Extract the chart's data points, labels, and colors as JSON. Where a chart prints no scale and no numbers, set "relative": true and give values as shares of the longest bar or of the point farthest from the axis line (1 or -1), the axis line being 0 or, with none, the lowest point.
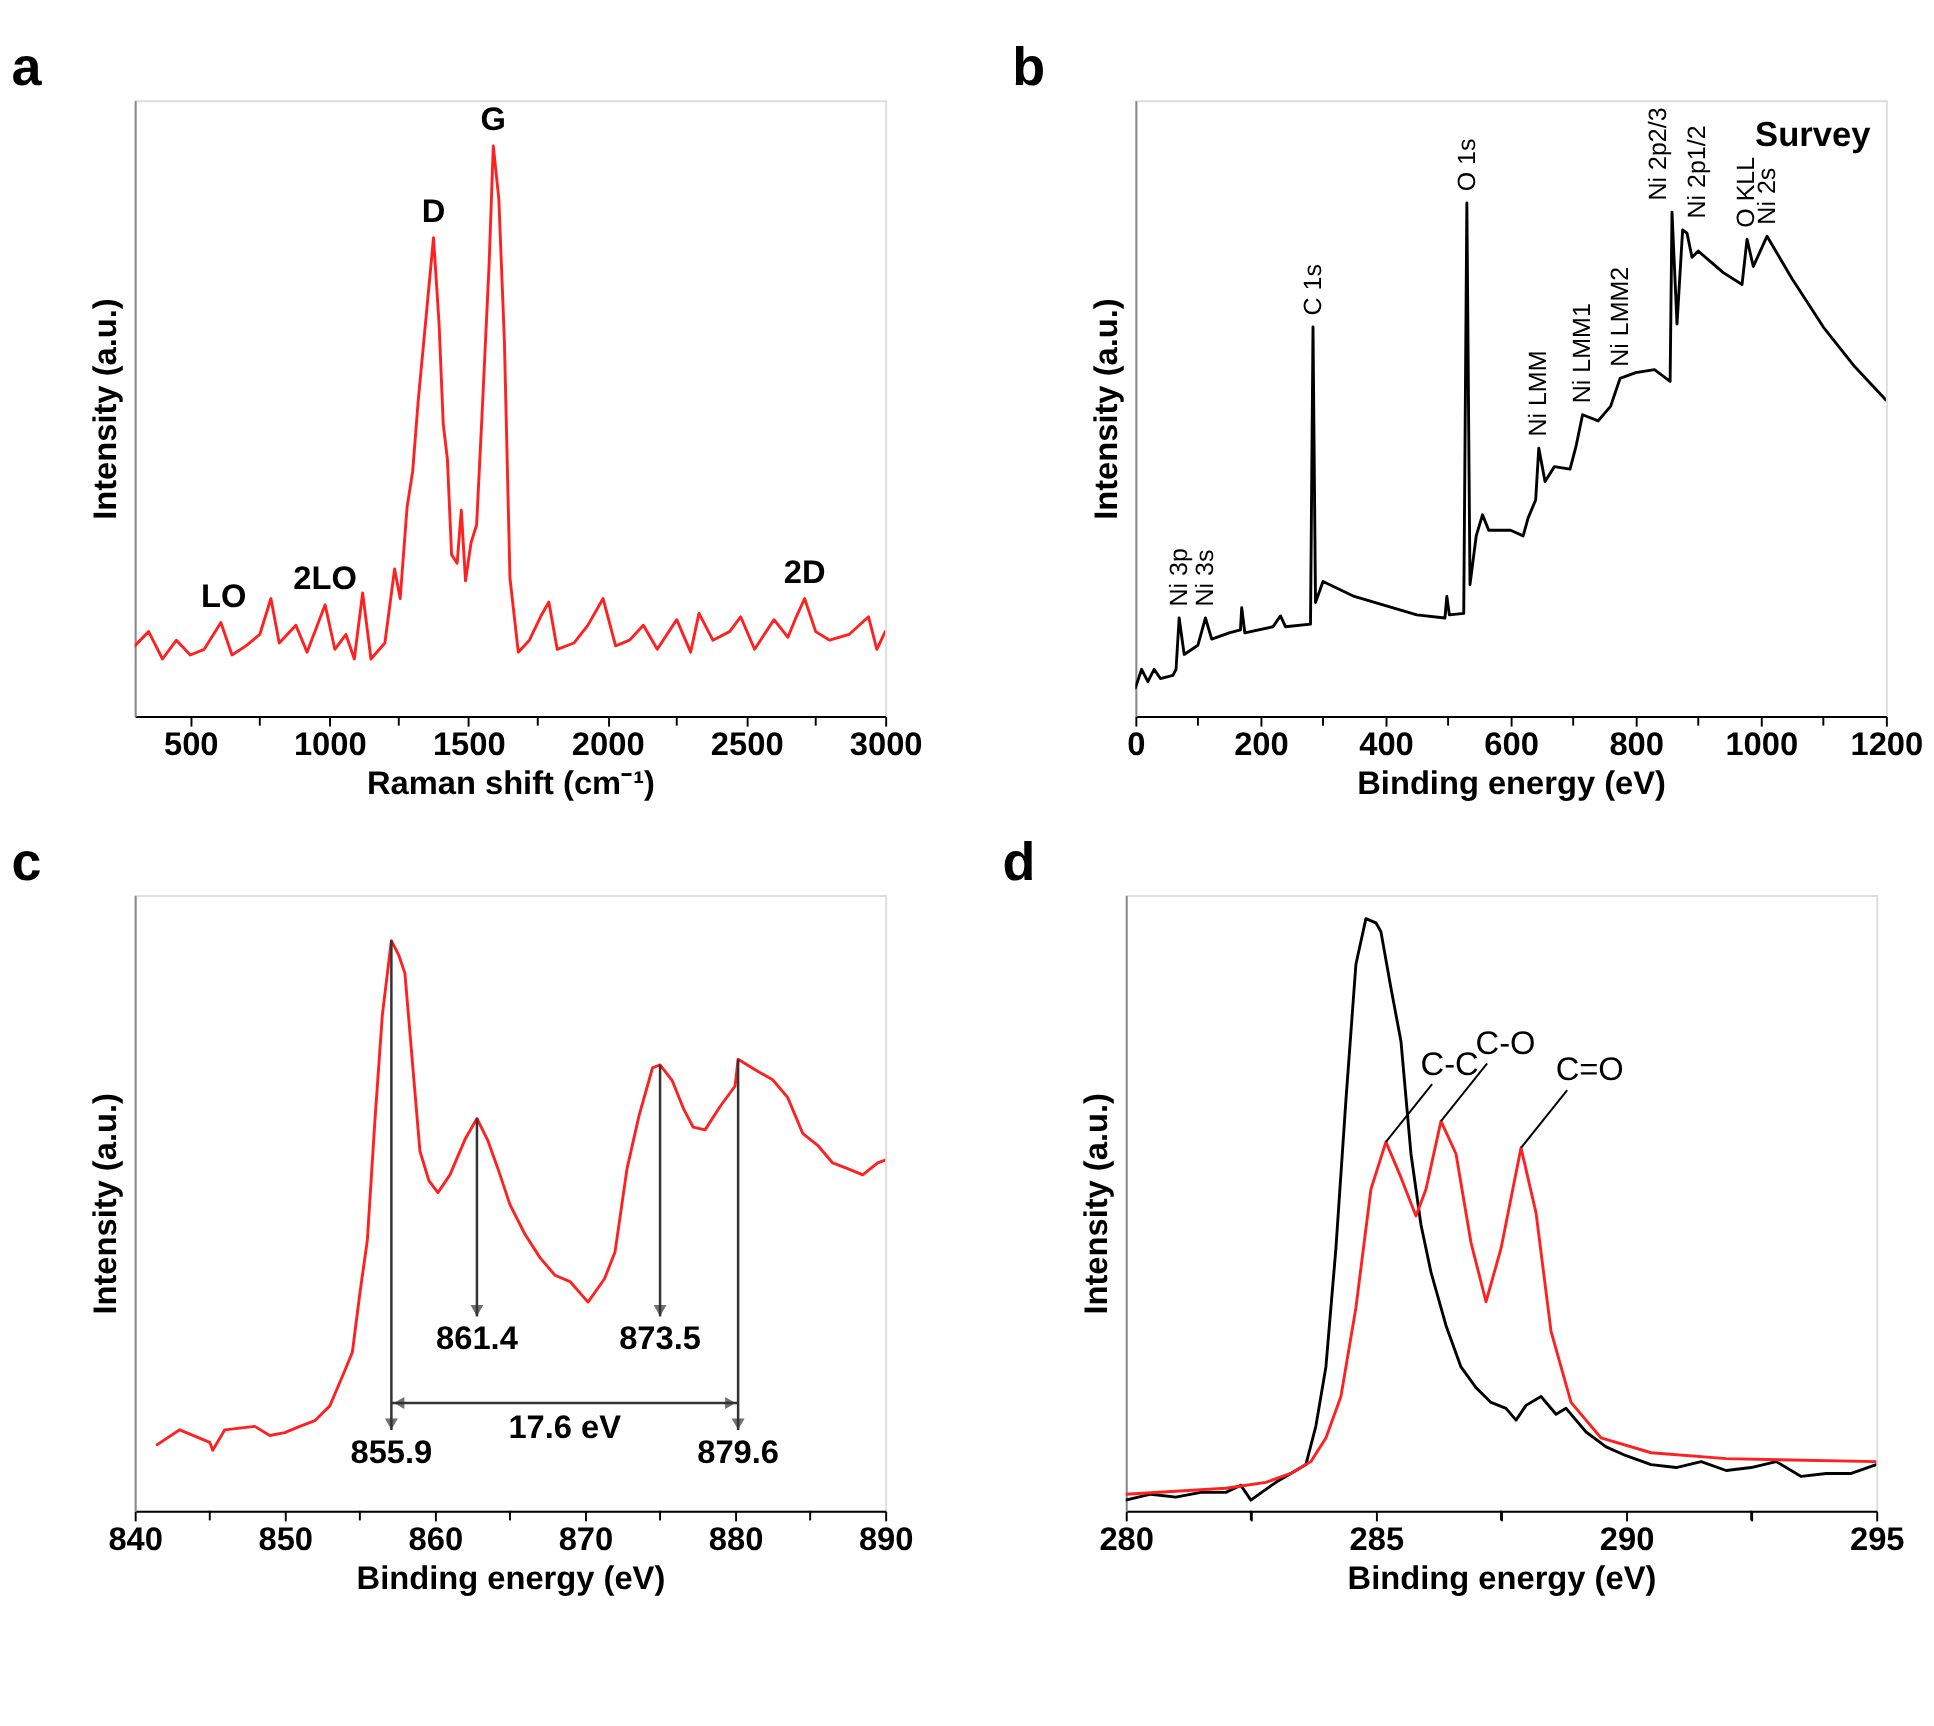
{
  "chart_data": [
    {
      "type": "line",
      "title": "a",
      "xlabel": "Raman shift (cm⁻¹)",
      "ylabel": "Intensity (a.u.)",
      "relative": true,
      "tick_labels": "x",
      "grid": false,
      "xlim": [
        300,
        3000
      ],
      "xticks": [
        500,
        {
          "value": 750,
          "label": null
        },
        1000,
        {
          "value": 1250,
          "label": null
        },
        1500,
        {
          "value": 1750,
          "label": null
        },
        2000,
        {
          "value": 2250,
          "label": null
        },
        2500,
        {
          "value": 2750,
          "label": null
        },
        3000
      ],
      "series": [
        {
          "color": "#ff2020",
          "x": [
            300,
            350,
            400,
            450,
            500,
            550,
            610,
            650,
            700,
            750,
            790,
            820,
            880,
            920,
            985,
            1020,
            1060,
            1090,
            1120,
            1150,
            1200,
            1235,
            1255,
            1280,
            1300,
            1320,
            1350,
            1375,
            1395,
            1410,
            1425,
            1440,
            1460,
            1475,
            1490,
            1510,
            1530,
            1550,
            1575,
            1590,
            1610,
            1630,
            1650,
            1680,
            1720,
            1760,
            1790,
            1820,
            1880,
            1930,
            1985,
            2030,
            2080,
            2130,
            2180,
            2250,
            2300,
            2330,
            2380,
            2440,
            2480,
            2530,
            2600,
            2650,
            2680,
            2710,
            2750,
            2800,
            2870,
            2940,
            2970,
            3000
          ],
          "values": [
            0.123,
            0.148,
            0.1,
            0.133,
            0.107,
            0.117,
            0.164,
            0.107,
            0.123,
            0.143,
            0.206,
            0.128,
            0.159,
            0.112,
            0.195,
            0.117,
            0.143,
            0.1,
            0.216,
            0.1,
            0.128,
            0.258,
            0.206,
            0.367,
            0.429,
            0.553,
            0.709,
            0.839,
            0.688,
            0.512,
            0.45,
            0.283,
            0.268,
            0.361,
            0.237,
            0.304,
            0.335,
            0.533,
            0.792,
            1.0,
            0.907,
            0.657,
            0.242,
            0.112,
            0.133,
            0.174,
            0.2,
            0.117,
            0.128,
            0.159,
            0.206,
            0.123,
            0.133,
            0.159,
            0.117,
            0.169,
            0.112,
            0.18,
            0.133,
            0.148,
            0.174,
            0.117,
            0.169,
            0.138,
            0.174,
            0.206,
            0.148,
            0.133,
            0.143,
            0.174,
            0.117,
            0.148
          ]
        }
      ],
      "annotations": [
        {
          "text": "LO",
          "x": 620,
          "y": 0.164
        },
        {
          "text": "2LO",
          "x": 985,
          "y": 0.195
        },
        {
          "text": "D",
          "x": 1375,
          "y": 0.839
        },
        {
          "text": "G",
          "x": 1590,
          "y": 1.0
        },
        {
          "text": "2D",
          "x": 2710,
          "y": 0.206
        }
      ]
    },
    {
      "type": "line",
      "title": "b",
      "xlabel": "Binding energy (eV)",
      "ylabel": "Intensity (a.u.)",
      "relative": true,
      "tick_labels": "x",
      "grid": false,
      "xlim": [
        0,
        1200
      ],
      "xticks": [
        0,
        {
          "value": 100,
          "label": null
        },
        200,
        {
          "value": 300,
          "label": null
        },
        400,
        {
          "value": 500,
          "label": null
        },
        600,
        {
          "value": 700,
          "label": null
        },
        800,
        {
          "value": 900,
          "label": null
        },
        1000,
        {
          "value": 1100,
          "label": null
        },
        1200
      ],
      "series": [
        {
          "color": "#000000",
          "x": [
            0,
            10,
            20,
            30,
            40,
            60,
            65,
            70,
            78,
            100,
            112,
            122,
            150,
            168,
            170,
            175,
            220,
            232,
            240,
            280,
            284,
            288,
            300,
            350,
            400,
            450,
            495,
            498,
            502,
            525,
            530,
            535,
            545,
            555,
            565,
            600,
            620,
            628,
            640,
            645,
            655,
            670,
            695,
            705,
            715,
            740,
            760,
            775,
            800,
            830,
            855,
            858,
            866,
            875,
            882,
            890,
            900,
            940,
            970,
            978,
            988,
            1010,
            1050,
            1100,
            1150,
            1200
          ],
          "values": [
            0.055,
            0.091,
            0.067,
            0.091,
            0.073,
            0.079,
            0.091,
            0.191,
            0.12,
            0.138,
            0.191,
            0.15,
            0.162,
            0.168,
            0.211,
            0.162,
            0.174,
            0.195,
            0.174,
            0.179,
            0.758,
            0.221,
            0.262,
            0.233,
            0.215,
            0.197,
            0.191,
            0.233,
            0.197,
            0.2,
            1.0,
            0.256,
            0.351,
            0.392,
            0.362,
            0.362,
            0.351,
            0.386,
            0.421,
            0.522,
            0.457,
            0.486,
            0.481,
            0.528,
            0.587,
            0.575,
            0.604,
            0.658,
            0.669,
            0.675,
            0.652,
            0.982,
            0.764,
            0.947,
            0.941,
            0.894,
            0.906,
            0.864,
            0.841,
            0.929,
            0.876,
            0.935,
            0.852,
            0.758,
            0.681,
            0.616
          ]
        }
      ],
      "annotations": [
        "Survey",
        {
          "text": "Ni 3p",
          "x": 70,
          "y": 0.191
        },
        {
          "text": "Ni 3s",
          "x": 112,
          "y": 0.191
        },
        {
          "text": "C 1s",
          "x": 284,
          "y": 0.758
        },
        {
          "text": "O 1s",
          "x": 530,
          "y": 1.0
        },
        {
          "text": "Ni LMM",
          "x": 645,
          "y": 0.522
        },
        {
          "text": "Ni LMM1",
          "x": 715,
          "y": 0.587
        },
        {
          "text": "Ni LMM2",
          "x": 775,
          "y": 0.658
        },
        {
          "text": "Ni 2p2/3",
          "x": 857,
          "y": 0.982
        },
        {
          "text": "Ni 2p1/2",
          "x": 877,
          "y": 0.947
        },
        {
          "text": "O KLL",
          "x": 977,
          "y": 0.929
        },
        {
          "text": "Ni 2s",
          "x": 1010,
          "y": 0.935
        }
      ]
    },
    {
      "type": "line",
      "title": "c",
      "xlabel": "Binding energy  (eV)",
      "ylabel": "Intensity (a.u.)",
      "relative": true,
      "tick_labels": "x",
      "grid": false,
      "xlim": [
        840,
        890
      ],
      "xticks": [
        840,
        {
          "value": 845,
          "label": null
        },
        850,
        {
          "value": 855,
          "label": null
        },
        860,
        {
          "value": 865,
          "label": null
        },
        870,
        {
          "value": 875,
          "label": null
        },
        880,
        {
          "value": 885,
          "label": null
        },
        890
      ],
      "series": [
        {
          "color": "#ff2020",
          "x": [
            841.5,
            843,
            845,
            845.2,
            846,
            848,
            849,
            850,
            851,
            852,
            853,
            854,
            854.5,
            855,
            855.5,
            856,
            856.5,
            857.1,
            857.6,
            858,
            858.5,
            859,
            859.6,
            860.2,
            861,
            862,
            862.8,
            863.5,
            864.2,
            865,
            866,
            867,
            868,
            869,
            870.2,
            871.3,
            872,
            872.8,
            873.6,
            874.5,
            875,
            875.8,
            876.6,
            877.2,
            878,
            879,
            880,
            880.2,
            881.5,
            882.5,
            883.5,
            884.5,
            885.5,
            886.5,
            887.5,
            888.5,
            889.5,
            890
          ],
          "values": [
            0.116,
            0.142,
            0.12,
            0.106,
            0.142,
            0.148,
            0.132,
            0.137,
            0.148,
            0.158,
            0.184,
            0.246,
            0.278,
            0.381,
            0.475,
            0.683,
            0.87,
            1.0,
            0.974,
            0.943,
            0.787,
            0.631,
            0.579,
            0.558,
            0.589,
            0.651,
            0.688,
            0.651,
            0.6,
            0.537,
            0.485,
            0.444,
            0.413,
            0.402,
            0.366,
            0.407,
            0.454,
            0.6,
            0.693,
            0.777,
            0.782,
            0.755,
            0.703,
            0.673,
            0.668,
            0.709,
            0.745,
            0.792,
            0.771,
            0.756,
            0.725,
            0.662,
            0.641,
            0.61,
            0.6,
            0.589,
            0.61,
            0.615
          ]
        }
      ],
      "annotations": [
        {
          "text": "855.9",
          "x": 857.1,
          "y": 1.0
        },
        {
          "text": "861.4",
          "x": 862.8,
          "y": 0.688
        },
        {
          "text": "873.5",
          "x": 875,
          "y": 0.782
        },
        {
          "text": "879.6",
          "x": 880.2,
          "y": 0.792
        },
        "17.6 eV"
      ]
    },
    {
      "type": "line",
      "title": "d",
      "xlabel": "Binding energy (eV)",
      "ylabel": "Intensity (a.u.)",
      "relative": true,
      "tick_labels": "x",
      "grid": false,
      "xlim": [
        280,
        295
      ],
      "xticks": [
        280,
        {
          "value": 282.5,
          "label": null
        },
        285,
        {
          "value": 287.5,
          "label": null
        },
        290,
        {
          "value": 292.5,
          "label": null
        },
        295
      ],
      "series": [
        {
          "color": "#000000",
          "x": [
            280,
            280.5,
            281,
            281.5,
            282,
            282.3,
            282.5,
            283,
            283.3,
            283.6,
            283.8,
            284,
            284.2,
            284.4,
            284.6,
            284.8,
            285.0,
            285.1,
            285.3,
            285.5,
            285.7,
            285.9,
            286.1,
            286.4,
            286.7,
            287,
            287.3,
            287.6,
            287.8,
            288.0,
            288.3,
            288.6,
            288.8,
            289.2,
            289.6,
            290,
            290.5,
            291,
            291.5,
            292,
            292.5,
            293,
            293.5,
            294,
            294.5,
            295
          ],
          "values": [
            0.018,
            0.028,
            0.023,
            0.031,
            0.031,
            0.043,
            0.018,
            0.048,
            0.063,
            0.078,
            0.143,
            0.243,
            0.443,
            0.693,
            0.923,
            1.0,
            0.993,
            0.978,
            0.883,
            0.793,
            0.603,
            0.483,
            0.403,
            0.313,
            0.243,
            0.208,
            0.183,
            0.173,
            0.153,
            0.178,
            0.193,
            0.163,
            0.173,
            0.133,
            0.108,
            0.093,
            0.078,
            0.073,
            0.083,
            0.068,
            0.073,
            0.083,
            0.058,
            0.063,
            0.063,
            0.078
          ]
        },
        {
          "color": "#ff2020",
          "x": [
            280,
            281,
            282,
            282.8,
            283.3,
            283.7,
            284,
            284.3,
            284.6,
            284.9,
            285.2,
            285.5,
            285.8,
            286.0,
            286.3,
            286.6,
            286.9,
            287.2,
            287.5,
            287.9,
            288.2,
            288.5,
            288.9,
            289.5,
            290.5,
            292,
            295
          ],
          "values": [
            0.028,
            0.033,
            0.038,
            0.048,
            0.063,
            0.083,
            0.123,
            0.193,
            0.343,
            0.543,
            0.623,
            0.563,
            0.498,
            0.543,
            0.658,
            0.603,
            0.453,
            0.353,
            0.443,
            0.613,
            0.503,
            0.303,
            0.183,
            0.123,
            0.098,
            0.088,
            0.083
          ]
        }
      ],
      "annotations": [
        {
          "text": "C-C",
          "x": 285.2,
          "y": 0.623
        },
        {
          "text": "C-O",
          "x": 286.3,
          "y": 0.658
        },
        {
          "text": "C=O",
          "x": 287.9,
          "y": 0.613
        }
      ]
    }
  ]
}
